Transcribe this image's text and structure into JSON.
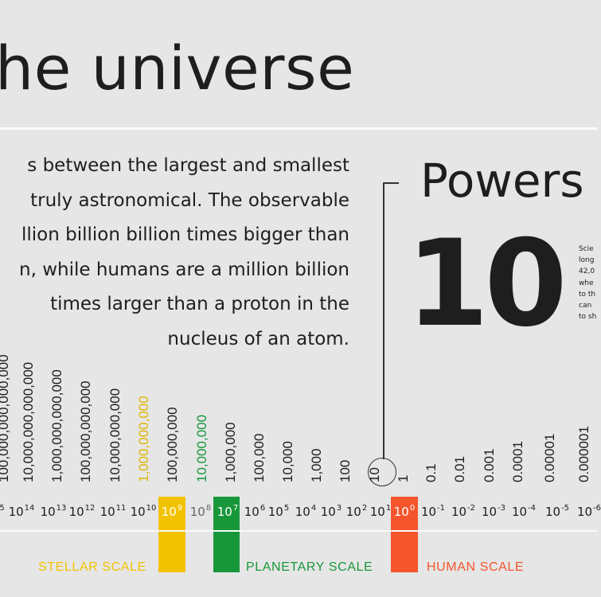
{
  "header": {
    "title": "he universe",
    "intro_lines": [
      "s between the largest and smallest",
      "truly astronomical. The observable",
      "llion billion billion times bigger than",
      "n, while humans are a million billion",
      "times larger than a proton in the",
      "nucleus of an atom."
    ]
  },
  "powers_panel": {
    "heading": "Powers",
    "big_number": "10",
    "side_note_lines": [
      "Scie",
      "long",
      "42,0",
      "whe",
      "to th",
      "can",
      "to sh"
    ]
  },
  "number_columns": [
    {
      "text": "100,000,000,000,000",
      "color": "#1e1e1e"
    },
    {
      "text": "10,000,000,000,000",
      "color": "#1e1e1e"
    },
    {
      "text": "1,000,000,000,000",
      "color": "#1e1e1e"
    },
    {
      "text": "100,000,000,000",
      "color": "#1e1e1e"
    },
    {
      "text": "10,000,000,000",
      "color": "#1e1e1e"
    },
    {
      "text": "1,000,000,000",
      "color": "#e0b400"
    },
    {
      "text": "100,000,000",
      "color": "#1e1e1e"
    },
    {
      "text": "10,000,000",
      "color": "#17973a"
    },
    {
      "text": "1,000,000",
      "color": "#1e1e1e"
    },
    {
      "text": "100,000",
      "color": "#1e1e1e"
    },
    {
      "text": "10,000",
      "color": "#1e1e1e"
    },
    {
      "text": "1,000",
      "color": "#1e1e1e"
    },
    {
      "text": "100",
      "color": "#1e1e1e"
    },
    {
      "text": "10",
      "color": "#1e1e1e"
    },
    {
      "text": "1",
      "color": "#1e1e1e"
    },
    {
      "text": "0.1",
      "color": "#1e1e1e"
    },
    {
      "text": "0.01",
      "color": "#1e1e1e"
    },
    {
      "text": "0.001",
      "color": "#1e1e1e"
    },
    {
      "text": "0.0001",
      "color": "#1e1e1e"
    },
    {
      "text": "0.00001",
      "color": "#1e1e1e"
    },
    {
      "text": "0.000001",
      "color": "#1e1e1e"
    }
  ],
  "powers_row": [
    {
      "base": "",
      "exp": "5"
    },
    {
      "base": "10",
      "exp": "14"
    },
    {
      "base": "10",
      "exp": "13"
    },
    {
      "base": "10",
      "exp": "12"
    },
    {
      "base": "10",
      "exp": "11"
    },
    {
      "base": "10",
      "exp": "10"
    },
    {
      "base": "10",
      "exp": "9"
    },
    {
      "base": "10",
      "exp": "8"
    },
    {
      "base": "10",
      "exp": "7"
    },
    {
      "base": "10",
      "exp": "6"
    },
    {
      "base": "10",
      "exp": "5"
    },
    {
      "base": "10",
      "exp": "4"
    },
    {
      "base": "10",
      "exp": "3"
    },
    {
      "base": "10",
      "exp": "2"
    },
    {
      "base": "10",
      "exp": "1"
    },
    {
      "base": "10",
      "exp": "0"
    },
    {
      "base": "10",
      "exp": "-1"
    },
    {
      "base": "10",
      "exp": "-2"
    },
    {
      "base": "10",
      "exp": "-3"
    },
    {
      "base": "10",
      "exp": "-4"
    },
    {
      "base": "10",
      "exp": "-5"
    },
    {
      "base": "10",
      "exp": "-6"
    }
  ],
  "scales": {
    "stellar": {
      "label": "STELLAR SCALE",
      "color": "#f2c200"
    },
    "planetary": {
      "label": "PLANETARY SCALE",
      "color": "#17973a"
    },
    "human": {
      "label": "HUMAN SCALE",
      "color": "#f4552d"
    }
  },
  "colors": {
    "background": "#e6e6e6",
    "text": "#1e1e1e",
    "rule": "#fbfbfb"
  }
}
